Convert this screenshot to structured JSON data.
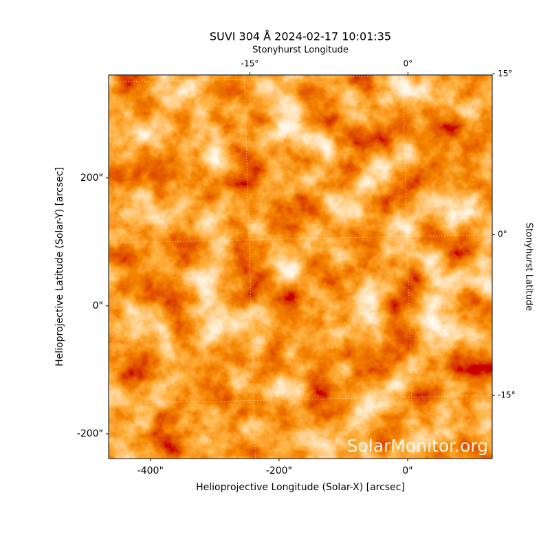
{
  "chart_data": {
    "type": "image",
    "title": "SUVI 304 Å 2024-02-17 10:01:35",
    "xlabel": "Helioprojective Longitude (Solar-X) [arcsec]",
    "ylabel": "Helioprojective Latitude (Solar-Y) [arcsec]",
    "x2label": "Stonyhurst Longitude",
    "y2label": "Stonyhurst Latitude",
    "xlim": [
      -465,
      131.5
    ],
    "ylim": [
      -238.7,
      361
    ],
    "xticks": [
      {
        "value": -400,
        "label": "-400\""
      },
      {
        "value": -200,
        "label": "-200\""
      },
      {
        "value": 0,
        "label": "0\""
      }
    ],
    "yticks": [
      {
        "value": -200,
        "label": "-200\""
      },
      {
        "value": 0,
        "label": "0\""
      },
      {
        "value": 200,
        "label": "200\""
      }
    ],
    "x2lim": [
      -28.4,
      8.0
    ],
    "x2ticks": [
      {
        "value": -15,
        "label": "-15°"
      },
      {
        "value": 0,
        "label": "0°"
      }
    ],
    "y2lim": [
      -20.9,
      14.9
    ],
    "y2ticks": [
      {
        "value": -15,
        "label": "-15°"
      },
      {
        "value": 0,
        "label": "0°"
      },
      {
        "value": 15,
        "label": "15°"
      }
    ],
    "watermark": "SolarMonitor.org"
  }
}
